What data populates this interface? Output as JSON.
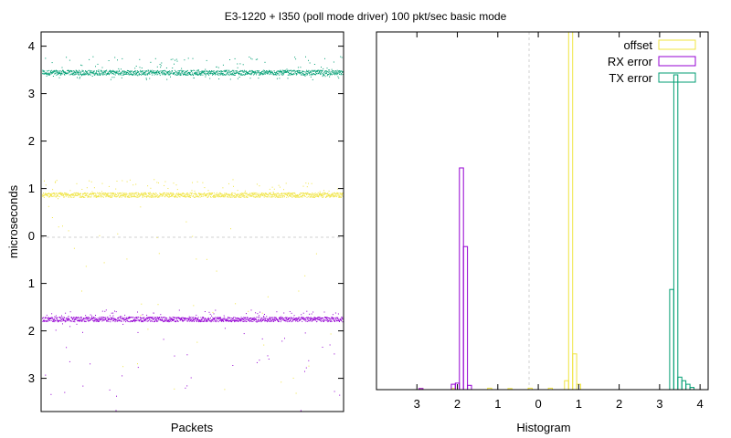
{
  "title": "E3-1220 + I350 (poll mode driver) 100 pkt/sec basic mode",
  "colors": {
    "offset": "#f0e442",
    "rx": "#9400d3",
    "tx": "#009e73",
    "axis": "#000000",
    "grid": "#d0d0d0"
  },
  "chart_data": [
    {
      "type": "scatter",
      "title": "",
      "xlabel": "Packets",
      "ylabel": "microseconds",
      "ylim": [
        -3.7,
        4.3
      ],
      "yticks": [
        4,
        3,
        2,
        1,
        0,
        -1,
        -2,
        -3
      ],
      "ytick_labels": [
        "4",
        "3",
        "2",
        "1",
        "0",
        "1",
        "2",
        "3"
      ],
      "grid": "horizontal dashed at 0",
      "series": [
        {
          "name": "TX error",
          "color": "#009e73",
          "center": 3.45,
          "band": 0.05,
          "outliers_high": 3.8,
          "outliers_low": 3.3
        },
        {
          "name": "offset",
          "color": "#f0e442",
          "center": 0.87,
          "band": 0.05,
          "outliers_high": 1.2,
          "outliers_low": -3.5
        },
        {
          "name": "RX error",
          "color": "#9400d3",
          "center": -1.75,
          "band": 0.05,
          "outliers_high": -1.55,
          "outliers_low": -3.7
        }
      ]
    },
    {
      "type": "bar",
      "title": "",
      "xlabel": "Histogram",
      "xlim": [
        -4.0,
        4.2
      ],
      "xticks": [
        -3,
        -2,
        -1,
        0,
        1,
        2,
        3,
        4
      ],
      "xtick_labels": [
        "3",
        "2",
        "1",
        "0",
        "1",
        "2",
        "3",
        "4"
      ],
      "ylim": [
        0,
        100
      ],
      "bin_width": 0.1,
      "legend_position": "top-right",
      "series": [
        {
          "name": "offset",
          "color": "#f0e442",
          "bins": [
            [
              -2.9,
              0.3
            ],
            [
              -2.1,
              0.3
            ],
            [
              -1.2,
              0.4
            ],
            [
              -0.7,
              0.3
            ],
            [
              -0.2,
              0.4
            ],
            [
              0.3,
              0.4
            ],
            [
              0.7,
              2.5
            ],
            [
              0.8,
              105
            ],
            [
              0.9,
              10
            ],
            [
              1.0,
              1.5
            ]
          ]
        },
        {
          "name": "RX error",
          "color": "#9400d3",
          "bins": [
            [
              -2.9,
              0.3
            ],
            [
              -2.1,
              1.5
            ],
            [
              -2.0,
              1.8
            ],
            [
              -1.9,
              62
            ],
            [
              -1.8,
              40
            ],
            [
              -1.7,
              1.2
            ]
          ]
        },
        {
          "name": "TX error",
          "color": "#009e73",
          "bins": [
            [
              3.3,
              28
            ],
            [
              3.4,
              88
            ],
            [
              3.5,
              3.5
            ],
            [
              3.6,
              2.5
            ],
            [
              3.7,
              1.5
            ],
            [
              3.8,
              0.6
            ]
          ]
        }
      ]
    }
  ]
}
